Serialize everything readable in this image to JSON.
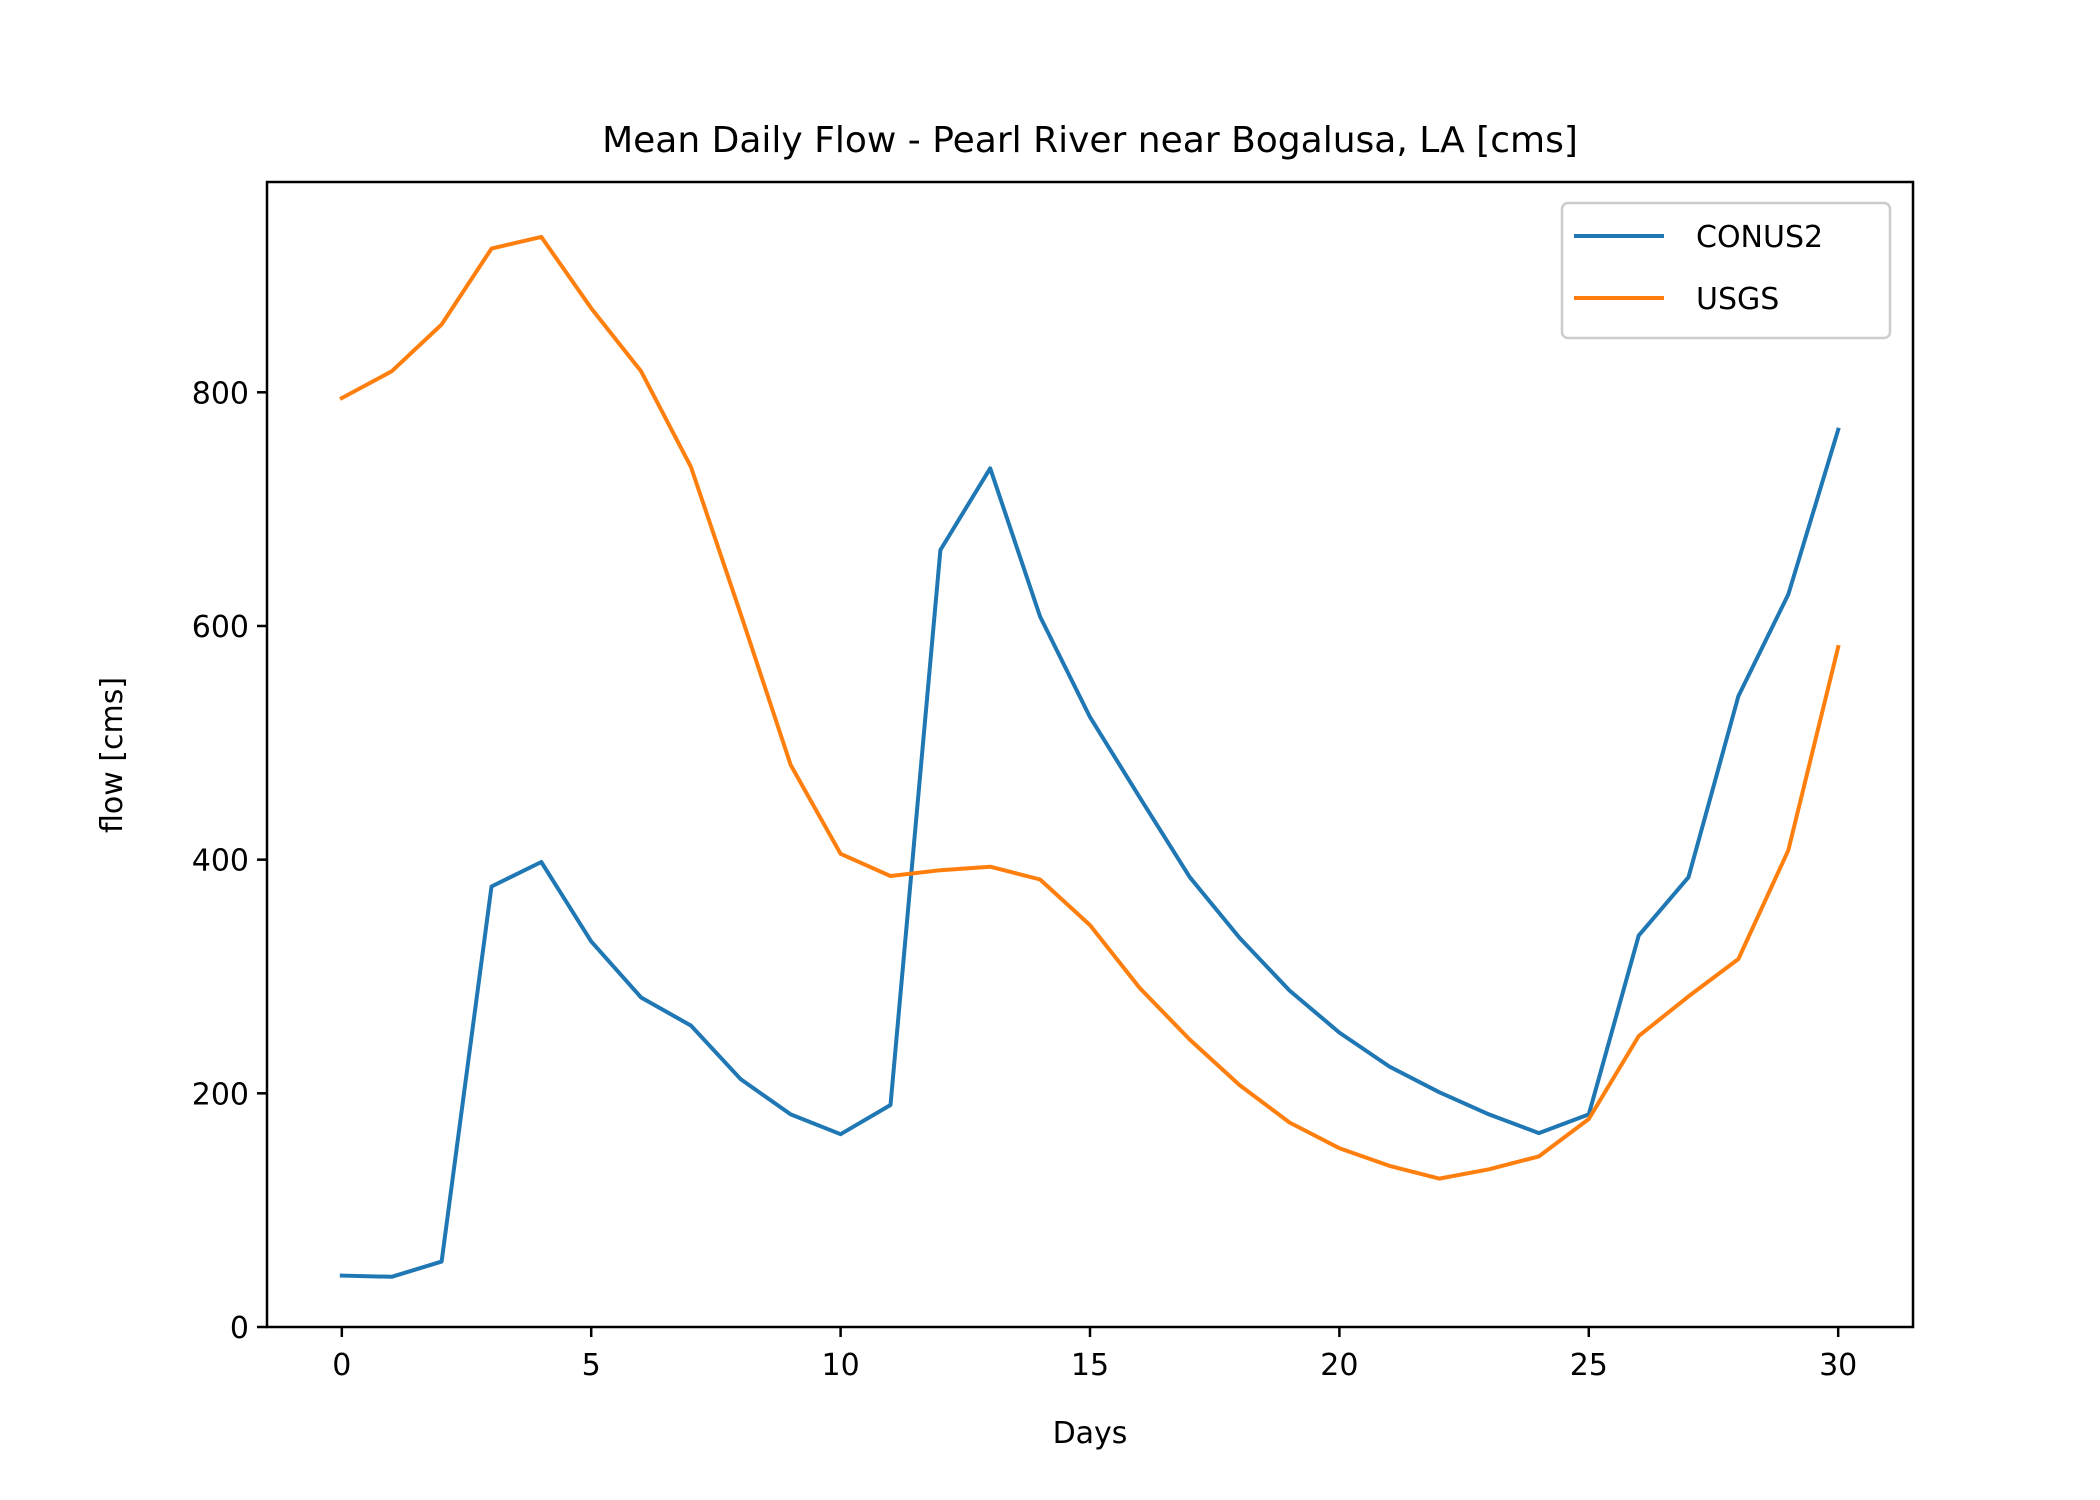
{
  "chart_data": {
    "type": "line",
    "title": "Mean Daily Flow - Pearl River near Bogalusa, LA [cms]",
    "xlabel": "Days",
    "ylabel": "flow [cms]",
    "xlim": [
      -1.5,
      31.5
    ],
    "ylim": [
      0,
      980
    ],
    "x_ticks": [
      0,
      5,
      10,
      15,
      20,
      25,
      30
    ],
    "y_ticks": [
      0,
      200,
      400,
      600,
      800
    ],
    "grid": false,
    "legend_position": "top-right",
    "x": [
      0,
      1,
      2,
      3,
      4,
      5,
      6,
      7,
      8,
      9,
      10,
      11,
      12,
      13,
      14,
      15,
      16,
      17,
      18,
      19,
      20,
      21,
      22,
      23,
      24,
      25,
      26,
      27,
      28,
      29,
      30
    ],
    "series": [
      {
        "name": "CONUS2",
        "color": "#1f77b4",
        "values": [
          44,
          43,
          56,
          377,
          398,
          330,
          282,
          258,
          212,
          182,
          165,
          190,
          665,
          735,
          608,
          522,
          453,
          385,
          333,
          288,
          252,
          223,
          201,
          182,
          166,
          182,
          335,
          385,
          540,
          627,
          768
        ]
      },
      {
        "name": "USGS",
        "color": "#ff7f0e",
        "values": [
          795,
          818,
          858,
          923,
          933,
          872,
          818,
          736,
          610,
          481,
          405,
          386,
          391,
          394,
          383,
          344,
          290,
          246,
          207,
          175,
          153,
          138,
          127,
          135,
          146,
          178,
          249,
          283,
          315,
          408,
          582
        ]
      }
    ]
  }
}
